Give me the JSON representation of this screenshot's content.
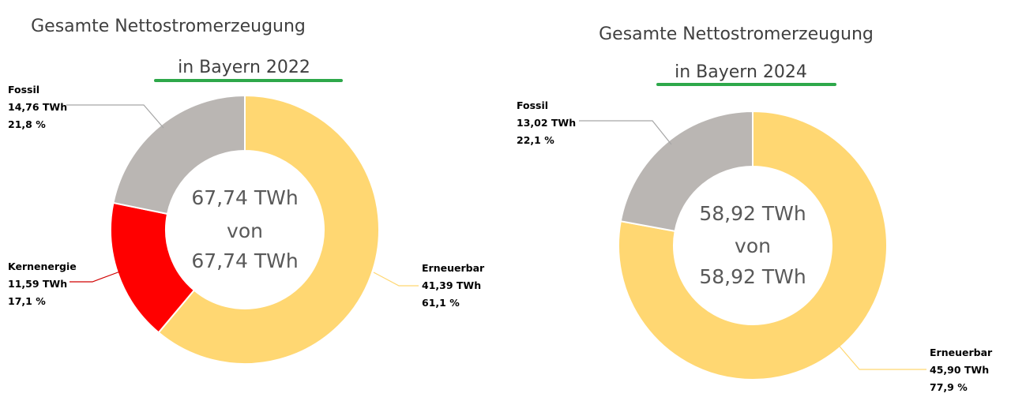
{
  "chart_data": [
    {
      "type": "pie",
      "title": "Gesamte Nettostromerzeugung",
      "subtitle": "in Bayern 2022",
      "center_label": {
        "line1": "67,74 TWh",
        "line2": "von",
        "line3": "67,74 TWh"
      },
      "total": 67.74,
      "slices": [
        {
          "name": "Erneuerbar",
          "value": 41.39,
          "value_label": "41,39 TWh",
          "percent_label": "61,1 %",
          "color": "#FFD772",
          "leader_color": "#FFD772"
        },
        {
          "name": "Kernenergie",
          "value": 11.59,
          "value_label": "11,59 TWh",
          "percent_label": "17,1 %",
          "color": "#FF0000",
          "leader_color": "#D00000"
        },
        {
          "name": "Fossil",
          "value": 14.76,
          "value_label": "14,76 TWh",
          "percent_label": "21,8 %",
          "color": "#BAB6B3",
          "leader_color": "#A6A6A6"
        }
      ],
      "underline_color": "#2EA84A"
    },
    {
      "type": "pie",
      "title": "Gesamte Nettostromerzeugung",
      "subtitle": "in Bayern 2024",
      "center_label": {
        "line1": "58,92 TWh",
        "line2": "von",
        "line3": "58,92 TWh"
      },
      "total": 58.92,
      "slices": [
        {
          "name": "Erneuerbar",
          "value": 45.9,
          "value_label": "45,90 TWh",
          "percent_label": "77,9 %",
          "color": "#FFD772",
          "leader_color": "#FFD772"
        },
        {
          "name": "Fossil",
          "value": 13.02,
          "value_label": "13,02 TWh",
          "percent_label": "22,1 %",
          "color": "#BAB6B3",
          "leader_color": "#A6A6A6"
        }
      ],
      "underline_color": "#2EA84A"
    }
  ]
}
